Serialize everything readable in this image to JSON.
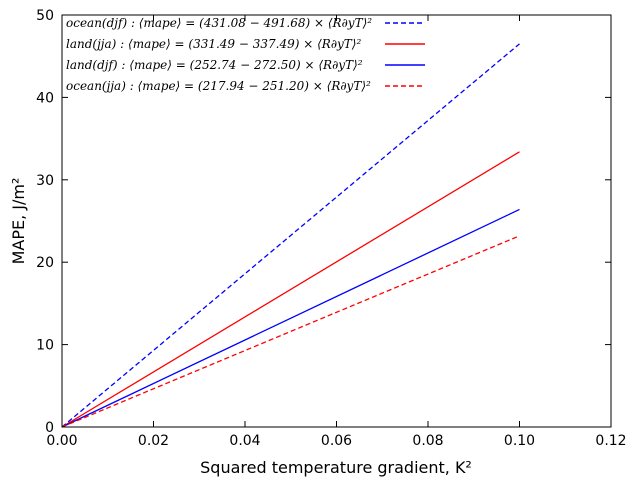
{
  "chart_data": {
    "type": "line",
    "xlabel": "Squared temperature gradient, K²",
    "ylabel": "MAPE, J/m²",
    "xlim": [
      0,
      0.12
    ],
    "ylim": [
      0,
      50
    ],
    "x_ticks": [
      "0.00",
      "0.02",
      "0.04",
      "0.06",
      "0.08",
      "0.10",
      "0.12"
    ],
    "y_ticks": [
      "0",
      "10",
      "20",
      "30",
      "40",
      "50"
    ],
    "grid": false,
    "legend_position": "top-left",
    "series": [
      {
        "name": "ocean(djf) : ⟨mape⟩ = (431.08 − 491.68) × ⟨R∂yT⟩²",
        "color": "#0000ff",
        "style": "dashed",
        "x": [
          0,
          0.1
        ],
        "y": [
          0,
          46.5
        ]
      },
      {
        "name": "land(jja) : ⟨mape⟩ = (331.49 − 337.49) × ⟨R∂yT⟩²",
        "color": "#ff0000",
        "style": "solid",
        "x": [
          0,
          0.1
        ],
        "y": [
          0,
          33.4
        ]
      },
      {
        "name": "land(djf) : ⟨mape⟩ = (252.74 − 272.50) × ⟨R∂yT⟩²",
        "color": "#0000ff",
        "style": "solid",
        "x": [
          0,
          0.1
        ],
        "y": [
          0,
          26.4
        ]
      },
      {
        "name": "ocean(jja) : ⟨mape⟩ = (217.94 − 251.20) × ⟨R∂yT⟩²",
        "color": "#ff0000",
        "style": "dashed",
        "x": [
          0,
          0.1
        ],
        "y": [
          0,
          23.2
        ]
      }
    ]
  }
}
